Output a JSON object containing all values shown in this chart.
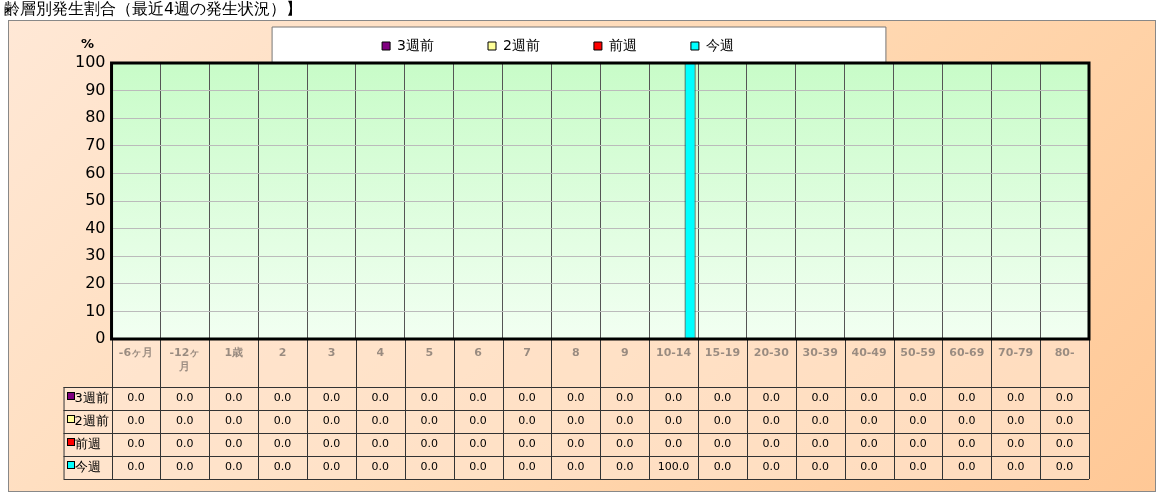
{
  "chart_data": {
    "type": "bar",
    "title": "齢層別発生割合（最近4週の発生状況）】",
    "ylabel": "%",
    "categories": [
      "-6ヶ月",
      "-12ヶ月",
      "1歳",
      "2",
      "3",
      "4",
      "5",
      "6",
      "7",
      "8",
      "9",
      "10-14",
      "15-19",
      "20-30",
      "30-39",
      "40-49",
      "50-59",
      "60-69",
      "70-79",
      "80-"
    ],
    "series": [
      {
        "name": "3週前",
        "color": "#800080",
        "values": [
          0,
          0,
          0,
          0,
          0,
          0,
          0,
          0,
          0,
          0,
          0,
          0,
          0,
          0,
          0,
          0,
          0,
          0,
          0,
          0
        ],
        "value_labels": [
          "0.0",
          "0.0",
          "0.0",
          "0.0",
          "0.0",
          "0.0",
          "0.0",
          "0.0",
          "0.0",
          "0.0",
          "0.0",
          "0.0",
          "0.0",
          "0.0",
          "0.0",
          "0.0",
          "0.0",
          "0.0",
          "0.0",
          "0.0"
        ]
      },
      {
        "name": "2週前",
        "color": "#ffff99",
        "values": [
          0,
          0,
          0,
          0,
          0,
          0,
          0,
          0,
          0,
          0,
          0,
          0,
          0,
          0,
          0,
          0,
          0,
          0,
          0,
          0
        ],
        "value_labels": [
          "0.0",
          "0.0",
          "0.0",
          "0.0",
          "0.0",
          "0.0",
          "0.0",
          "0.0",
          "0.0",
          "0.0",
          "0.0",
          "0.0",
          "0.0",
          "0.0",
          "0.0",
          "0.0",
          "0.0",
          "0.0",
          "0.0",
          "0.0"
        ]
      },
      {
        "name": "前週",
        "color": "#ff0000",
        "values": [
          0,
          0,
          0,
          0,
          0,
          0,
          0,
          0,
          0,
          0,
          0,
          0,
          0,
          0,
          0,
          0,
          0,
          0,
          0,
          0
        ],
        "value_labels": [
          "0.0",
          "0.0",
          "0.0",
          "0.0",
          "0.0",
          "0.0",
          "0.0",
          "0.0",
          "0.0",
          "0.0",
          "0.0",
          "0.0",
          "0.0",
          "0.0",
          "0.0",
          "0.0",
          "0.0",
          "0.0",
          "0.0",
          "0.0"
        ]
      },
      {
        "name": "今週",
        "color": "#00ffff",
        "values": [
          0,
          0,
          0,
          0,
          0,
          0,
          0,
          0,
          0,
          0,
          0,
          100,
          0,
          0,
          0,
          0,
          0,
          0,
          0,
          0
        ],
        "value_labels": [
          "0.0",
          "0.0",
          "0.0",
          "0.0",
          "0.0",
          "0.0",
          "0.0",
          "0.0",
          "0.0",
          "0.0",
          "0.0",
          "100.0",
          "0.0",
          "0.0",
          "0.0",
          "0.0",
          "0.0",
          "0.0",
          "0.0",
          "0.0"
        ]
      }
    ],
    "ylim": [
      0,
      100
    ],
    "yticks": [
      0,
      10,
      20,
      30,
      40,
      50,
      60,
      70,
      80,
      90,
      100
    ],
    "grid": true,
    "legend": "top"
  }
}
